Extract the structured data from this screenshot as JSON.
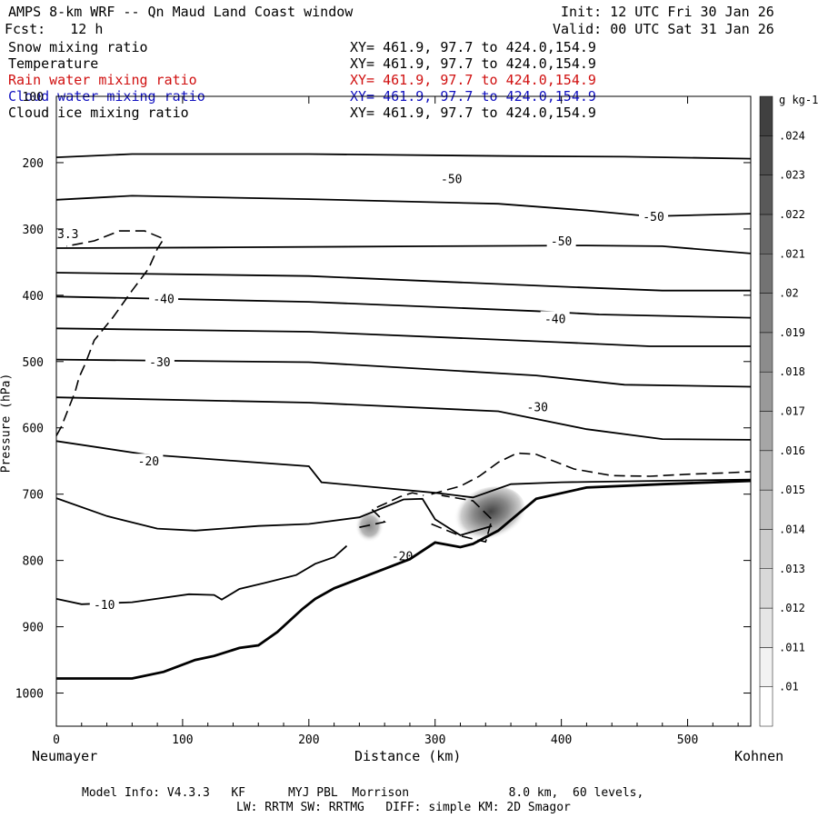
{
  "header": {
    "title": "AMPS 8-km WRF -- Qn Maud Land Coast window",
    "init": "Init: 12 UTC Fri 30 Jan 26",
    "fcst": "Fcst:   12 h",
    "valid": "Valid: 00 UTC Sat 31 Jan 26"
  },
  "fields": [
    {
      "name": "Snow mixing ratio",
      "xy": "XY= 461.9, 97.7 to 424.0,154.9",
      "color": "#000000"
    },
    {
      "name": "Temperature",
      "xy": "XY= 461.9, 97.7 to 424.0,154.9",
      "color": "#000000"
    },
    {
      "name": "Rain water mixing ratio",
      "xy": "XY= 461.9, 97.7 to 424.0,154.9",
      "color": "#d01010"
    },
    {
      "name": "Cloud water mixing ratio",
      "xy": "XY= 461.9, 97.7 to 424.0,154.9",
      "color": "#1010c0"
    },
    {
      "name": "Cloud ice mixing ratio",
      "xy": "XY= 461.9, 97.7 to 424.0,154.9",
      "color": "#000000"
    }
  ],
  "chart_data": {
    "type": "cross-section contour",
    "title": "AMPS 8-km WRF -- Qn Maud Land Coast window",
    "xlabel": "Distance (km)",
    "ylabel": "Pressure (hPa)",
    "xlim": [
      0,
      550
    ],
    "ylim": [
      1050,
      100
    ],
    "x_ticks": [
      0,
      100,
      200,
      300,
      400,
      500
    ],
    "y_ticks": [
      200,
      300,
      400,
      500,
      600,
      700,
      800,
      900,
      1000
    ],
    "x_left_label": "Neumayer",
    "x_right_label": "Kohnen",
    "isotherms": [
      {
        "pts": [
          [
            0,
            192
          ],
          [
            60,
            187
          ],
          [
            200,
            187
          ],
          [
            360,
            190
          ],
          [
            450,
            191
          ],
          [
            550,
            194
          ]
        ]
      },
      {
        "pts": [
          [
            0,
            256
          ],
          [
            60,
            250
          ],
          [
            200,
            255
          ],
          [
            350,
            262
          ],
          [
            420,
            272
          ],
          [
            470,
            281
          ],
          [
            550,
            277
          ]
        ],
        "label": "-50",
        "lx": 313,
        "ly": 224
      },
      {
        "pts": [
          [
            0,
            329
          ],
          [
            120,
            328
          ],
          [
            300,
            326
          ],
          [
            420,
            325
          ],
          [
            480,
            326
          ],
          [
            550,
            337
          ]
        ],
        "label": "-50",
        "lx": 473,
        "ly": 281
      },
      {
        "pts": [
          [
            0,
            366
          ],
          [
            200,
            371
          ],
          [
            400,
            387
          ],
          [
            480,
            393
          ],
          [
            550,
            393
          ]
        ],
        "label": "-50",
        "lx": 400,
        "ly": 318
      },
      {
        "pts": [
          [
            0,
            402
          ],
          [
            200,
            410
          ],
          [
            380,
            424
          ],
          [
            430,
            429
          ],
          [
            550,
            434
          ]
        ],
        "label": "-40",
        "lx": 85,
        "ly": 405
      },
      {
        "pts": [
          [
            0,
            450
          ],
          [
            200,
            455
          ],
          [
            400,
            471
          ],
          [
            470,
            477
          ],
          [
            550,
            477
          ]
        ],
        "label": "-40",
        "lx": 395,
        "ly": 435
      },
      {
        "pts": [
          [
            0,
            497
          ],
          [
            200,
            501
          ],
          [
            380,
            521
          ],
          [
            450,
            535
          ],
          [
            550,
            538
          ]
        ],
        "label": "-30",
        "lx": 82,
        "ly": 500
      },
      {
        "pts": [
          [
            0,
            554
          ],
          [
            200,
            562
          ],
          [
            350,
            575
          ],
          [
            420,
            602
          ],
          [
            480,
            617
          ],
          [
            550,
            618
          ]
        ],
        "label": "-30",
        "lx": 381,
        "ly": 568
      },
      {
        "pts": [
          [
            0,
            620
          ],
          [
            70,
            640
          ],
          [
            200,
            658
          ],
          [
            210,
            682
          ],
          [
            300,
            698
          ],
          [
            330,
            705
          ],
          [
            360,
            685
          ],
          [
            400,
            682
          ],
          [
            550,
            678
          ]
        ],
        "label": "-20",
        "lx": 73,
        "ly": 650
      },
      {
        "pts": [
          [
            0,
            706
          ],
          [
            40,
            733
          ],
          [
            80,
            752
          ],
          [
            110,
            755
          ],
          [
            160,
            748
          ],
          [
            200,
            745
          ],
          [
            240,
            735
          ],
          [
            275,
            708
          ],
          [
            290,
            707
          ],
          [
            300,
            738
          ],
          [
            320,
            762
          ],
          [
            345,
            748
          ]
        ],
        "label": "-20",
        "lx": 274,
        "ly": 793
      },
      {
        "pts": [
          [
            0,
            858
          ],
          [
            20,
            866
          ],
          [
            60,
            863
          ],
          [
            105,
            851
          ],
          [
            125,
            852
          ],
          [
            131,
            859
          ],
          [
            145,
            843
          ],
          [
            165,
            834
          ],
          [
            190,
            822
          ],
          [
            205,
            805
          ],
          [
            220,
            795
          ],
          [
            230,
            778
          ]
        ],
        "label": "-10",
        "lx": 38,
        "ly": 866
      }
    ],
    "terrain": [
      [
        0,
        978
      ],
      [
        60,
        978
      ],
      [
        85,
        968
      ],
      [
        110,
        950
      ],
      [
        125,
        944
      ],
      [
        145,
        932
      ],
      [
        160,
        928
      ],
      [
        175,
        908
      ],
      [
        195,
        873
      ],
      [
        205,
        858
      ],
      [
        220,
        842
      ],
      [
        250,
        820
      ],
      [
        280,
        798
      ],
      [
        300,
        773
      ],
      [
        320,
        780
      ],
      [
        330,
        775
      ],
      [
        350,
        755
      ],
      [
        380,
        707
      ],
      [
        420,
        690
      ],
      [
        480,
        685
      ],
      [
        550,
        680
      ]
    ],
    "dashed_contours": [
      {
        "pts": [
          [
            0,
            612
          ],
          [
            4,
            598
          ],
          [
            15,
            545
          ],
          [
            18,
            524
          ],
          [
            23,
            503
          ],
          [
            30,
            468
          ],
          [
            45,
            433
          ],
          [
            60,
            393
          ],
          [
            73,
            360
          ],
          [
            80,
            330
          ],
          [
            85,
            315
          ],
          [
            70,
            303
          ],
          [
            50,
            303
          ],
          [
            30,
            318
          ],
          [
            8,
            326
          ]
        ],
        "label": "3.3"
      },
      {
        "pts": [
          [
            240,
            750
          ],
          [
            260,
            742
          ],
          [
            250,
            723
          ],
          [
            262,
            713
          ],
          [
            272,
            704
          ],
          [
            282,
            698
          ],
          [
            291,
            702
          ]
        ]
      },
      {
        "pts": [
          [
            297,
            700
          ],
          [
            320,
            688
          ],
          [
            335,
            673
          ],
          [
            350,
            652
          ],
          [
            365,
            638
          ],
          [
            380,
            640
          ],
          [
            395,
            651
          ],
          [
            410,
            662
          ],
          [
            440,
            672
          ],
          [
            470,
            673
          ],
          [
            500,
            670
          ],
          [
            530,
            668
          ],
          [
            550,
            666
          ]
        ]
      },
      {
        "pts": [
          [
            297,
            745
          ],
          [
            320,
            763
          ],
          [
            340,
            772
          ],
          [
            345,
            738
          ],
          [
            330,
            710
          ],
          [
            305,
            702
          ]
        ]
      }
    ],
    "shaded_blobs": [
      {
        "x": 248,
        "p": 748,
        "value": 0.016
      },
      {
        "x": 342,
        "p": 732,
        "value": 0.023
      }
    ],
    "colorbar": {
      "unit": "g kg-1",
      "levels": [
        0.01,
        0.011,
        0.012,
        0.013,
        0.014,
        0.015,
        0.016,
        0.017,
        0.018,
        0.019,
        0.02,
        0.021,
        0.022,
        0.023,
        0.024
      ],
      "labels": [
        ".01",
        ".011",
        ".012",
        ".013",
        ".014",
        ".015",
        ".016",
        ".017",
        ".018",
        ".019",
        ".02",
        ".021",
        ".022",
        ".023",
        ".024"
      ]
    }
  },
  "footer": {
    "line1": "Model Info: V4.3.3   KF      MYJ PBL  Morrison              8.0 km,  60 levels,",
    "line2": "LW: RRTM SW: RRTMG   DIFF: simple KM: 2D Smagor"
  }
}
